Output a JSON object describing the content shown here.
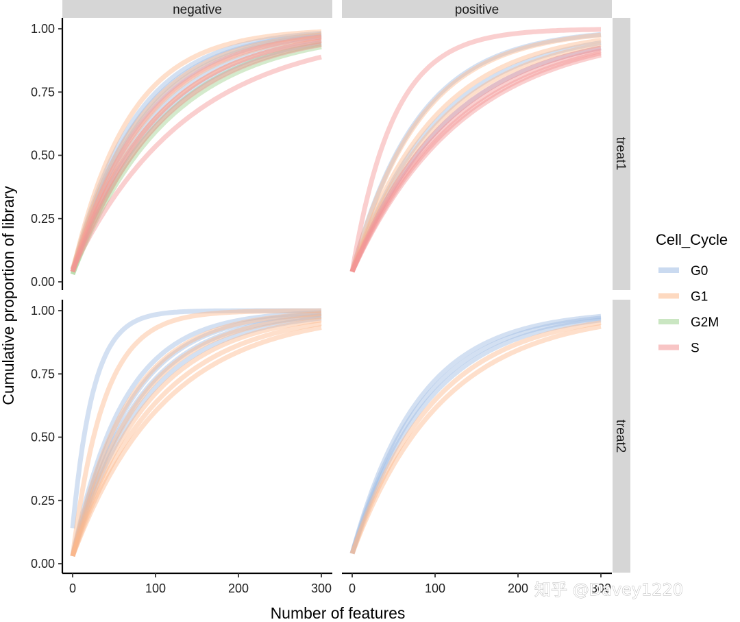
{
  "chart_data": {
    "type": "line",
    "title": "",
    "xlabel": "Number of features",
    "ylabel": "Cumulative proportion of library",
    "xlim": [
      0,
      300
    ],
    "ylim": [
      0,
      1
    ],
    "x_ticks": [
      0,
      100,
      200,
      300
    ],
    "x_tick_labels": [
      "0",
      "100",
      "200",
      "300"
    ],
    "y_ticks": [
      0,
      0.25,
      0.5,
      0.75,
      1.0
    ],
    "y_tick_labels": [
      "0.00",
      "0.25",
      "0.50",
      "0.75",
      "1.00"
    ],
    "facet_cols": [
      "negative",
      "positive"
    ],
    "facet_rows": [
      "treat1",
      "treat2"
    ],
    "legend": {
      "title": "Cell_Cycle",
      "position": "right",
      "entries": [
        {
          "name": "G0",
          "color": "#9ebbe3"
        },
        {
          "name": "G1",
          "color": "#fcb98c"
        },
        {
          "name": "G2M",
          "color": "#9fd18f"
        },
        {
          "name": "S",
          "color": "#f39595"
        }
      ]
    },
    "curve_model": "y = y0 + (1 - y0) * (1 - exp(-x / tau))",
    "panels": [
      {
        "col": "negative",
        "row": "treat1",
        "series": [
          {
            "group": "G0",
            "y0": 0.04,
            "tau": 75
          },
          {
            "group": "G0",
            "y0": 0.04,
            "tau": 80
          },
          {
            "group": "G0",
            "y0": 0.04,
            "tau": 85
          },
          {
            "group": "G0",
            "y0": 0.04,
            "tau": 95
          },
          {
            "group": "G0",
            "y0": 0.05,
            "tau": 105
          },
          {
            "group": "G1",
            "y0": 0.04,
            "tau": 68
          },
          {
            "group": "G1",
            "y0": 0.05,
            "tau": 82
          },
          {
            "group": "G1",
            "y0": 0.04,
            "tau": 90
          },
          {
            "group": "G1",
            "y0": 0.04,
            "tau": 100
          },
          {
            "group": "G2M",
            "y0": 0.03,
            "tau": 108
          },
          {
            "group": "G2M",
            "y0": 0.03,
            "tau": 115
          },
          {
            "group": "S",
            "y0": 0.04,
            "tau": 88
          },
          {
            "group": "S",
            "y0": 0.04,
            "tau": 100
          },
          {
            "group": "S",
            "y0": 0.04,
            "tau": 110
          },
          {
            "group": "S",
            "y0": 0.05,
            "tau": 140
          }
        ]
      },
      {
        "col": "positive",
        "row": "treat1",
        "series": [
          {
            "group": "G0",
            "y0": 0.04,
            "tau": 80
          },
          {
            "group": "G0",
            "y0": 0.04,
            "tau": 105
          },
          {
            "group": "G0",
            "y0": 0.04,
            "tau": 118
          },
          {
            "group": "G1",
            "y0": 0.04,
            "tau": 82
          },
          {
            "group": "G1",
            "y0": 0.04,
            "tau": 98
          },
          {
            "group": "G1",
            "y0": 0.04,
            "tau": 110
          },
          {
            "group": "S",
            "y0": 0.04,
            "tau": 50
          },
          {
            "group": "S",
            "y0": 0.04,
            "tau": 118
          },
          {
            "group": "S",
            "y0": 0.04,
            "tau": 125
          },
          {
            "group": "S",
            "y0": 0.04,
            "tau": 130
          },
          {
            "group": "S",
            "y0": 0.04,
            "tau": 135
          }
        ]
      },
      {
        "col": "negative",
        "row": "treat2",
        "series": [
          {
            "group": "G0",
            "y0": 0.14,
            "tau": 25
          },
          {
            "group": "G0",
            "y0": 0.03,
            "tau": 62
          },
          {
            "group": "G0",
            "y0": 0.03,
            "tau": 70
          },
          {
            "group": "G0",
            "y0": 0.03,
            "tau": 78
          },
          {
            "group": "G0",
            "y0": 0.03,
            "tau": 86
          },
          {
            "group": "G1",
            "y0": 0.03,
            "tau": 38
          },
          {
            "group": "G1",
            "y0": 0.03,
            "tau": 68
          },
          {
            "group": "G1",
            "y0": 0.03,
            "tau": 80
          },
          {
            "group": "G1",
            "y0": 0.03,
            "tau": 92
          },
          {
            "group": "G1",
            "y0": 0.03,
            "tau": 102
          },
          {
            "group": "G1",
            "y0": 0.03,
            "tau": 112
          }
        ]
      },
      {
        "col": "positive",
        "row": "treat2",
        "series": [
          {
            "group": "G0",
            "y0": 0.04,
            "tau": 80
          },
          {
            "group": "G0",
            "y0": 0.04,
            "tau": 86
          },
          {
            "group": "G0",
            "y0": 0.04,
            "tau": 92
          },
          {
            "group": "G1",
            "y0": 0.04,
            "tau": 100
          },
          {
            "group": "G1",
            "y0": 0.04,
            "tau": 110
          }
        ]
      }
    ]
  },
  "watermark": "知乎 @Davey1220"
}
